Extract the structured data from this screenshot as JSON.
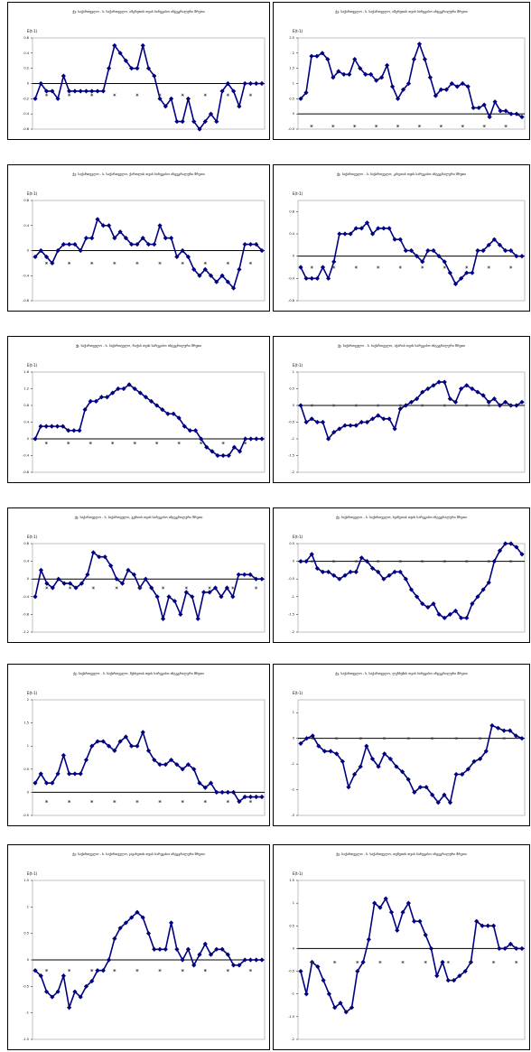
{
  "chart_data": [
    {
      "type": "line",
      "title": "ქვ. საქართველო - ს. საქართველო, იმერეთის თვის სარეგისო ინტეგრალური შრეთი",
      "y_label": "E(t-1)",
      "ylim": [
        -0.6,
        0.6
      ],
      "yticks": [
        -0.6,
        -0.4,
        -0.2,
        0,
        0.2,
        0.4,
        0.6
      ],
      "series": [
        {
          "color": "#000080",
          "marker": "diamond",
          "values": [
            -0.2,
            0.0,
            -0.1,
            -0.1,
            -0.2,
            0.1,
            -0.1,
            -0.1,
            -0.1,
            -0.1,
            -0.1,
            -0.1,
            -0.1,
            0.2,
            0.5,
            0.4,
            0.3,
            0.2,
            0.2,
            0.5,
            0.2,
            0.1,
            -0.2,
            -0.3,
            -0.2,
            -0.5,
            -0.5,
            -0.2,
            -0.5,
            -0.6,
            -0.5,
            -0.4,
            -0.5,
            -0.1,
            0.0,
            -0.1,
            -0.3,
            0.0,
            0.0,
            0.0,
            0.0
          ]
        },
        {
          "color": "#333333",
          "marker": "star",
          "x": [
            2,
            6,
            10,
            14,
            18,
            22,
            26,
            30,
            34,
            38
          ],
          "values": [
            -0.15,
            -0.15,
            -0.15,
            -0.15,
            -0.15,
            -0.15,
            -0.15,
            -0.15,
            -0.15,
            -0.15
          ]
        }
      ]
    },
    {
      "type": "line",
      "title": "ქვ. საქართველო - ს. საქართველო, იმერეთის თვის სარეგისო ინტეგრალური შრეთი",
      "y_label": "E(t-1)",
      "ylim": [
        -0.5,
        2.5
      ],
      "yticks": [
        -0.5,
        0,
        0.5,
        1,
        1.5,
        2,
        2.5
      ],
      "series": [
        {
          "color": "#000080",
          "marker": "diamond",
          "values": [
            0.5,
            0.7,
            1.9,
            1.9,
            2.0,
            1.8,
            1.2,
            1.4,
            1.3,
            1.3,
            1.8,
            1.5,
            1.3,
            1.3,
            1.1,
            1.2,
            1.6,
            0.9,
            0.5,
            0.8,
            1.0,
            1.8,
            2.3,
            1.8,
            1.2,
            0.6,
            0.8,
            0.8,
            1.0,
            0.9,
            1.0,
            0.9,
            0.2,
            0.2,
            0.3,
            -0.1,
            0.4,
            0.1,
            0.1,
            0.0,
            0.0,
            -0.1
          ]
        },
        {
          "color": "#333333",
          "marker": "star",
          "x": [
            2,
            6,
            10,
            14,
            18,
            22,
            26,
            30,
            34,
            38
          ],
          "values": [
            -0.4,
            -0.4,
            -0.4,
            -0.4,
            -0.4,
            -0.4,
            -0.4,
            -0.4,
            -0.4,
            -0.4
          ]
        }
      ]
    },
    {
      "type": "line",
      "title": "ქვ. საქართველო - ს. საქართველო, ქართლის თვის სარეგისო ინტეგრალური შრეთი",
      "y_label": "E(t-1)",
      "ylim": [
        -0.8,
        0.8
      ],
      "yticks": [
        -0.8,
        -0.4,
        0,
        0.4,
        0.8
      ],
      "series": [
        {
          "color": "#000080",
          "marker": "diamond",
          "values": [
            -0.1,
            0.0,
            -0.1,
            -0.2,
            0.0,
            0.1,
            0.1,
            0.1,
            0.0,
            0.2,
            0.2,
            0.5,
            0.4,
            0.4,
            0.2,
            0.3,
            0.2,
            0.1,
            0.1,
            0.2,
            0.1,
            0.1,
            0.4,
            0.2,
            0.2,
            -0.1,
            0.0,
            -0.1,
            -0.3,
            -0.4,
            -0.3,
            -0.4,
            -0.5,
            -0.4,
            -0.5,
            -0.6,
            -0.3,
            0.1,
            0.1,
            0.1,
            0.0
          ]
        },
        {
          "color": "#333333",
          "marker": "star",
          "x": [
            2,
            6,
            10,
            14,
            18,
            22,
            26,
            30,
            34,
            38
          ],
          "values": [
            -0.2,
            -0.2,
            -0.2,
            -0.2,
            -0.2,
            -0.2,
            -0.2,
            -0.2,
            -0.2,
            -0.2
          ]
        }
      ]
    },
    {
      "type": "line",
      "title": "ქვ. საქართველო - ს. საქართველო, კახეთის თვის სარეგისო ინტეგრალური შრეთი",
      "y_label": "E(t-1)",
      "ylim": [
        -0.8,
        1.0
      ],
      "yticks": [
        -0.8,
        -0.4,
        0,
        0.4,
        0.8
      ],
      "series": [
        {
          "color": "#000080",
          "marker": "diamond",
          "values": [
            -0.2,
            -0.4,
            -0.4,
            -0.4,
            -0.2,
            -0.4,
            -0.1,
            0.4,
            0.4,
            0.4,
            0.5,
            0.5,
            0.6,
            0.4,
            0.5,
            0.5,
            0.5,
            0.3,
            0.3,
            0.1,
            0.1,
            0.0,
            -0.1,
            0.1,
            0.1,
            0.0,
            -0.1,
            -0.3,
            -0.5,
            -0.4,
            -0.3,
            -0.3,
            0.1,
            0.1,
            0.2,
            0.3,
            0.2,
            0.1,
            0.1,
            0.0,
            0.0
          ]
        },
        {
          "color": "#333333",
          "marker": "star",
          "x": [
            2,
            6,
            10,
            14,
            18,
            22,
            26,
            30,
            34,
            38
          ],
          "values": [
            -0.2,
            -0.2,
            -0.2,
            -0.2,
            -0.2,
            -0.2,
            -0.2,
            -0.2,
            -0.2,
            -0.2
          ]
        }
      ]
    },
    {
      "type": "line",
      "title": "ქვ. საქართველო - ს. საქართველო, რაჭის თვის სარეგისო ინტეგრალური შრეთი",
      "y_label": "E(t-1)",
      "ylim": [
        -0.8,
        1.6
      ],
      "yticks": [
        -0.8,
        -0.4,
        0,
        0.4,
        0.8,
        1.2,
        1.6
      ],
      "series": [
        {
          "color": "#000080",
          "marker": "diamond",
          "values": [
            0.0,
            0.3,
            0.3,
            0.3,
            0.3,
            0.3,
            0.2,
            0.2,
            0.2,
            0.7,
            0.9,
            0.9,
            1.0,
            1.0,
            1.1,
            1.2,
            1.2,
            1.3,
            1.2,
            1.1,
            1.0,
            0.9,
            0.8,
            0.7,
            0.6,
            0.6,
            0.5,
            0.3,
            0.2,
            0.2,
            0.0,
            -0.2,
            -0.3,
            -0.4,
            -0.4,
            -0.4,
            -0.2,
            -0.3,
            0.0,
            0.0,
            0.0,
            0.0
          ]
        },
        {
          "color": "#333333",
          "marker": "star",
          "x": [
            2,
            6,
            10,
            14,
            18,
            22,
            26,
            30,
            34,
            38
          ],
          "values": [
            -0.1,
            -0.1,
            -0.1,
            -0.1,
            -0.1,
            -0.1,
            -0.1,
            -0.1,
            -0.1,
            -0.1
          ]
        }
      ]
    },
    {
      "type": "line",
      "title": "ქვ. საქართველო - ს. საქართველო, აჭარის თვის სარეგისო ინტეგრალური შრეთი",
      "y_label": "E(t-1)",
      "ylim": [
        -2,
        1
      ],
      "yticks": [
        -2,
        -1.5,
        -1,
        -0.5,
        0,
        0.5,
        1
      ],
      "series": [
        {
          "color": "#000080",
          "marker": "diamond",
          "values": [
            0.0,
            -0.5,
            -0.4,
            -0.5,
            -0.5,
            -1.0,
            -0.8,
            -0.7,
            -0.6,
            -0.6,
            -0.6,
            -0.5,
            -0.5,
            -0.4,
            -0.3,
            -0.4,
            -0.4,
            -0.7,
            -0.1,
            0.0,
            0.1,
            0.2,
            0.4,
            0.5,
            0.6,
            0.7,
            0.7,
            0.2,
            0.1,
            0.5,
            0.6,
            0.5,
            0.4,
            0.3,
            0.1,
            0.2,
            0.0,
            0.1,
            0.0,
            0.0,
            0.1
          ]
        },
        {
          "color": "#333333",
          "marker": "star",
          "x": [
            2,
            6,
            10,
            14,
            18,
            22,
            26,
            30,
            34,
            38
          ],
          "values": [
            0,
            0,
            0,
            0,
            0,
            0,
            0,
            0,
            0,
            0
          ]
        }
      ]
    },
    {
      "type": "line",
      "title": "ქვ. საქართველო - ს. საქართველო, გურიის თვის სარეგისო ინტეგრალური შრეთი",
      "y_label": "E(t-1)",
      "ylim": [
        -1.2,
        0.8
      ],
      "yticks": [
        -1.2,
        -0.8,
        -0.4,
        0,
        0.4,
        0.8
      ],
      "series": [
        {
          "color": "#000080",
          "marker": "diamond",
          "values": [
            -0.4,
            0.2,
            -0.1,
            -0.2,
            0.0,
            -0.1,
            -0.1,
            -0.2,
            -0.1,
            0.1,
            0.6,
            0.5,
            0.5,
            0.3,
            0.0,
            -0.1,
            0.2,
            0.1,
            -0.2,
            0.0,
            -0.2,
            -0.4,
            -0.9,
            -0.4,
            -0.5,
            -0.8,
            -0.3,
            -0.4,
            -0.9,
            -0.3,
            -0.3,
            -0.2,
            -0.4,
            -0.2,
            -0.4,
            0.1,
            0.1,
            0.1,
            0.0,
            0.0
          ]
        },
        {
          "color": "#333333",
          "marker": "star",
          "x": [
            2,
            6,
            10,
            14,
            18,
            22,
            26,
            30,
            34,
            38
          ],
          "values": [
            -0.2,
            -0.2,
            -0.2,
            -0.2,
            -0.2,
            -0.2,
            -0.2,
            -0.2,
            -0.2,
            -0.2
          ]
        }
      ]
    },
    {
      "type": "line",
      "title": "ქვ. საქართველო - ს. საქართველო, სვანეთის თვის სარეგისო ინტეგრალური შრეთი",
      "y_label": "E(t-1)",
      "ylim": [
        -2,
        0.5
      ],
      "yticks": [
        -2,
        -1.5,
        -1,
        -0.5,
        0,
        0.5
      ],
      "series": [
        {
          "color": "#000080",
          "marker": "diamond",
          "values": [
            0.0,
            0.0,
            0.2,
            -0.2,
            -0.3,
            -0.3,
            -0.4,
            -0.5,
            -0.4,
            -0.3,
            -0.3,
            0.1,
            0.0,
            -0.2,
            -0.3,
            -0.5,
            -0.4,
            -0.3,
            -0.3,
            -0.5,
            -0.8,
            -1.0,
            -1.2,
            -1.3,
            -1.2,
            -1.5,
            -1.6,
            -1.5,
            -1.4,
            -1.6,
            -1.6,
            -1.2,
            -1.0,
            -0.8,
            -0.6,
            0.0,
            0.3,
            0.5,
            0.5,
            0.4,
            0.2
          ]
        },
        {
          "color": "#333333",
          "marker": "star",
          "x": [
            2,
            6,
            10,
            14,
            18,
            22,
            26,
            30,
            34,
            38
          ],
          "values": [
            0,
            0,
            0,
            0,
            0,
            0,
            0,
            0,
            0,
            0
          ]
        }
      ]
    },
    {
      "type": "line",
      "title": "ქვ. საქართველო - ს. საქართველო, მესხეთის თვის სარეგისო ინტეგრალური შრეთი",
      "y_label": "E(t-1)",
      "ylim": [
        -0.5,
        2.0
      ],
      "yticks": [
        -0.5,
        0,
        0.5,
        1,
        1.5,
        2
      ],
      "series": [
        {
          "color": "#000080",
          "marker": "diamond",
          "values": [
            0.2,
            0.4,
            0.2,
            0.2,
            0.4,
            0.8,
            0.4,
            0.4,
            0.4,
            0.7,
            1.0,
            1.1,
            1.1,
            1.0,
            0.9,
            1.1,
            1.2,
            1.0,
            1.0,
            1.3,
            0.9,
            0.7,
            0.6,
            0.6,
            0.7,
            0.6,
            0.5,
            0.6,
            0.5,
            0.2,
            0.1,
            0.2,
            0.0,
            0.0,
            0.0,
            0.0,
            -0.2,
            -0.1,
            -0.1,
            -0.1,
            -0.1
          ]
        },
        {
          "color": "#333333",
          "marker": "star",
          "x": [
            2,
            6,
            10,
            14,
            18,
            22,
            26,
            30,
            34,
            38
          ],
          "values": [
            -0.2,
            -0.2,
            -0.2,
            -0.2,
            -0.2,
            -0.2,
            -0.2,
            -0.2,
            -0.2,
            -0.2
          ]
        }
      ]
    },
    {
      "type": "line",
      "title": "ქვ. საქართველო - ს. საქართველო, ლეჩხუმის თვის სარეგისო ინტეგრალური შრეთი",
      "y_label": "E(t-1)",
      "ylim": [
        -3,
        1.5
      ],
      "yticks": [
        -3,
        -2,
        -1,
        0,
        1
      ],
      "series": [
        {
          "color": "#000080",
          "marker": "diamond",
          "values": [
            -0.2,
            0.0,
            0.1,
            -0.3,
            -0.5,
            -0.5,
            -0.6,
            -0.9,
            -1.9,
            -1.4,
            -1.1,
            -0.3,
            -0.8,
            -1.1,
            -0.6,
            -0.8,
            -1.1,
            -1.3,
            -1.6,
            -2.1,
            -1.9,
            -1.9,
            -2.2,
            -2.5,
            -2.2,
            -2.5,
            -1.4,
            -1.4,
            -1.2,
            -0.9,
            -0.8,
            -0.5,
            0.5,
            0.4,
            0.3,
            0.3,
            0.1,
            0.0
          ]
        },
        {
          "color": "#333333",
          "marker": "star",
          "x": [
            2,
            6,
            10,
            14,
            18,
            22,
            26,
            30,
            34
          ],
          "values": [
            0,
            0,
            0,
            0,
            0,
            0,
            0,
            0,
            0
          ]
        }
      ]
    },
    {
      "type": "line",
      "title": "ქვ. საქართველო - ს. საქართველო, ჯავახეთის თვის სარეგისო ინტეგრალური შრეთი",
      "y_label": "E(t-1)",
      "ylim": [
        -1.5,
        1.5
      ],
      "yticks": [
        -1.5,
        -1,
        -0.5,
        0,
        0.5,
        1,
        1.5
      ],
      "series": [
        {
          "color": "#000080",
          "marker": "diamond",
          "values": [
            -0.2,
            -0.3,
            -0.6,
            -0.7,
            -0.6,
            -0.3,
            -0.9,
            -0.6,
            -0.7,
            -0.5,
            -0.4,
            -0.2,
            -0.2,
            0.0,
            0.4,
            0.6,
            0.7,
            0.8,
            0.9,
            0.8,
            0.5,
            0.2,
            0.2,
            0.2,
            0.7,
            0.2,
            0.0,
            0.2,
            -0.1,
            0.1,
            0.3,
            0.1,
            0.2,
            0.2,
            0.1,
            -0.1,
            -0.1,
            0.0,
            0.0,
            0.0,
            0.0
          ]
        },
        {
          "color": "#333333",
          "marker": "star",
          "x": [
            2,
            6,
            10,
            14,
            18,
            22,
            26,
            30,
            34,
            38
          ],
          "values": [
            -0.2,
            -0.2,
            -0.2,
            -0.2,
            -0.2,
            -0.2,
            -0.2,
            -0.2,
            -0.2,
            -0.2
          ]
        }
      ]
    },
    {
      "type": "line",
      "title": "ქვ. საქართველო - ს. საქართველო, თუშეთის თვის სარეგისო ინტეგრალური შრეთი",
      "y_label": "E(t-1)",
      "ylim": [
        -2,
        1.5
      ],
      "yticks": [
        -2,
        -1.5,
        -1,
        -0.5,
        0,
        0.5,
        1,
        1.5
      ],
      "series": [
        {
          "color": "#000080",
          "marker": "diamond",
          "values": [
            -0.5,
            -1.0,
            -0.3,
            -0.4,
            -0.7,
            -1.0,
            -1.3,
            -1.2,
            -1.4,
            -1.3,
            -0.5,
            -0.3,
            0.2,
            1.0,
            0.9,
            1.1,
            0.8,
            0.4,
            0.8,
            1.0,
            0.6,
            0.6,
            0.3,
            0.0,
            -0.6,
            -0.3,
            -0.7,
            -0.7,
            -0.6,
            -0.5,
            -0.3,
            0.6,
            0.5,
            0.5,
            0.5,
            0.0,
            0.0,
            0.1,
            0.0,
            0.0
          ]
        },
        {
          "color": "#333333",
          "marker": "star",
          "x": [
            2,
            6,
            10,
            14,
            18,
            22,
            26,
            30,
            34,
            38
          ],
          "values": [
            -0.3,
            -0.3,
            -0.3,
            -0.3,
            -0.3,
            -0.3,
            -0.3,
            -0.3,
            -0.3,
            -0.3
          ]
        }
      ]
    }
  ]
}
